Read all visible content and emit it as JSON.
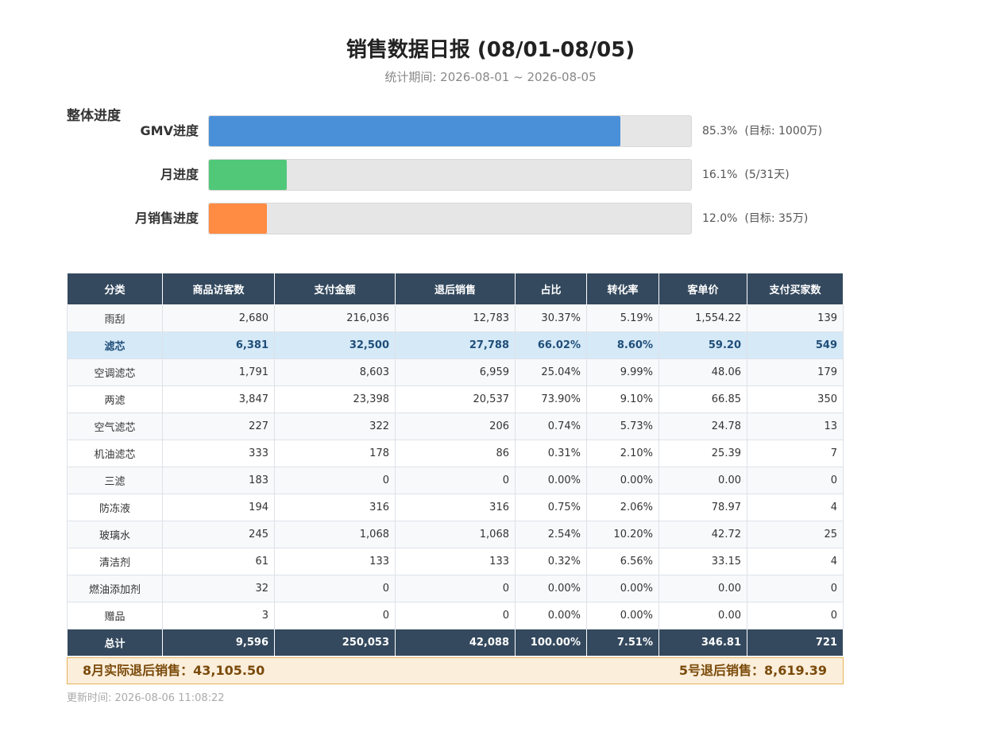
{
  "header": {
    "title": "销售数据日报 (08/01-08/05)",
    "subtitle": "统计期间: 2026-08-01 ~ 2026-08-05"
  },
  "progress": {
    "title": "整体进度",
    "items": [
      {
        "label": "GMV进度",
        "value": 85.3,
        "value_label": "85.3%",
        "note": "(目标: 1000万)",
        "color": "#4a90d9"
      },
      {
        "label": "月进度",
        "value": 16.1,
        "value_label": "16.1%",
        "note": "(5/31天)",
        "color": "#50c878"
      },
      {
        "label": "月销售进度",
        "value": 12.0,
        "value_label": "12.0%",
        "note": "(目标: 35万)",
        "color": "#ff8c42"
      }
    ]
  },
  "table": {
    "columns": [
      "分类",
      "商品访客数",
      "支付金额",
      "退后销售",
      "占比",
      "转化率",
      "客单价",
      "支付买家数"
    ],
    "rows": [
      [
        "雨刮",
        "2,680",
        "216,036",
        "12,783",
        "30.37%",
        "5.19%",
        "1,554.22",
        "139"
      ],
      [
        "滤芯",
        "6,381",
        "32,500",
        "27,788",
        "66.02%",
        "8.60%",
        "59.20",
        "549"
      ],
      [
        "空调滤芯",
        "1,791",
        "8,603",
        "6,959",
        "25.04%",
        "9.99%",
        "48.06",
        "179"
      ],
      [
        "两滤",
        "3,847",
        "23,398",
        "20,537",
        "73.90%",
        "9.10%",
        "66.85",
        "350"
      ],
      [
        "空气滤芯",
        "227",
        "322",
        "206",
        "0.74%",
        "5.73%",
        "24.78",
        "13"
      ],
      [
        "机油滤芯",
        "333",
        "178",
        "86",
        "0.31%",
        "2.10%",
        "25.39",
        "7"
      ],
      [
        "三滤",
        "183",
        "0",
        "0",
        "0.00%",
        "0.00%",
        "0.00",
        "0"
      ],
      [
        "防冻液",
        "194",
        "316",
        "316",
        "0.75%",
        "2.06%",
        "78.97",
        "4"
      ],
      [
        "玻璃水",
        "245",
        "1,068",
        "1,068",
        "2.54%",
        "10.20%",
        "42.72",
        "25"
      ],
      [
        "清洁剂",
        "61",
        "133",
        "133",
        "0.32%",
        "6.56%",
        "33.15",
        "4"
      ],
      [
        "燃油添加剂",
        "32",
        "0",
        "0",
        "0.00%",
        "0.00%",
        "0.00",
        "0"
      ],
      [
        "赠品",
        "3",
        "0",
        "0",
        "0.00%",
        "0.00%",
        "0.00",
        "0"
      ]
    ],
    "total": [
      "总计",
      "9,596",
      "250,053",
      "42,088",
      "100.00%",
      "7.51%",
      "346.81",
      "721"
    ]
  },
  "footer": {
    "left": "8月实际退后销售：43,105.50",
    "right": "5号退后销售：8,619.39",
    "updated": "更新时间: 2026-08-06 11:08:22"
  }
}
